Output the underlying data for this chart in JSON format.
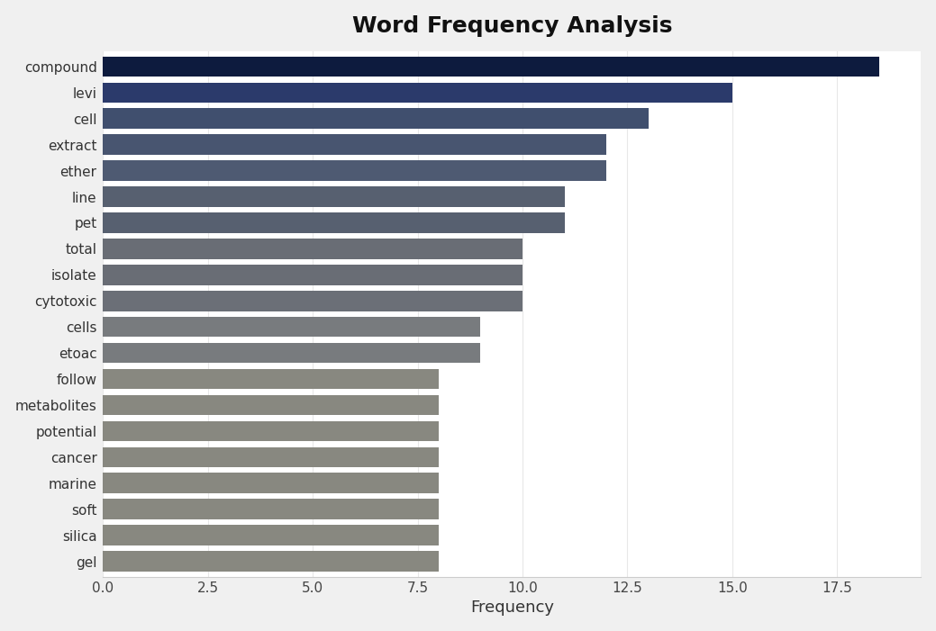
{
  "title": "Word Frequency Analysis",
  "xlabel": "Frequency",
  "categories": [
    "compound",
    "levi",
    "cell",
    "extract",
    "ether",
    "line",
    "pet",
    "total",
    "isolate",
    "cytotoxic",
    "cells",
    "etoac",
    "follow",
    "metabolites",
    "potential",
    "cancer",
    "marine",
    "soft",
    "silica",
    "gel"
  ],
  "values": [
    18.5,
    15.0,
    13.0,
    12.0,
    12.0,
    11.0,
    11.0,
    10.0,
    10.0,
    10.0,
    9.0,
    9.0,
    8.0,
    8.0,
    8.0,
    8.0,
    8.0,
    8.0,
    8.0,
    8.0
  ],
  "bar_colors": [
    "#0d1b3e",
    "#2b3a6b",
    "#404f6e",
    "#485570",
    "#4e5a72",
    "#576070",
    "#576070",
    "#696d75",
    "#696d75",
    "#6b6f77",
    "#787b7e",
    "#787b7e",
    "#888880",
    "#888880",
    "#888880",
    "#888880",
    "#888880",
    "#888880",
    "#888880",
    "#888880"
  ],
  "xlim": [
    0,
    19.5
  ],
  "xticks": [
    0.0,
    2.5,
    5.0,
    7.5,
    10.0,
    12.5,
    15.0,
    17.5
  ],
  "xtick_labels": [
    "0.0",
    "2.5",
    "5.0",
    "7.5",
    "10.0",
    "12.5",
    "15.0",
    "17.5"
  ],
  "figure_background_color": "#f0f0f0",
  "axes_background_color": "#ffffff",
  "title_fontsize": 18,
  "label_fontsize": 13,
  "tick_fontsize": 11,
  "bar_height": 0.78
}
